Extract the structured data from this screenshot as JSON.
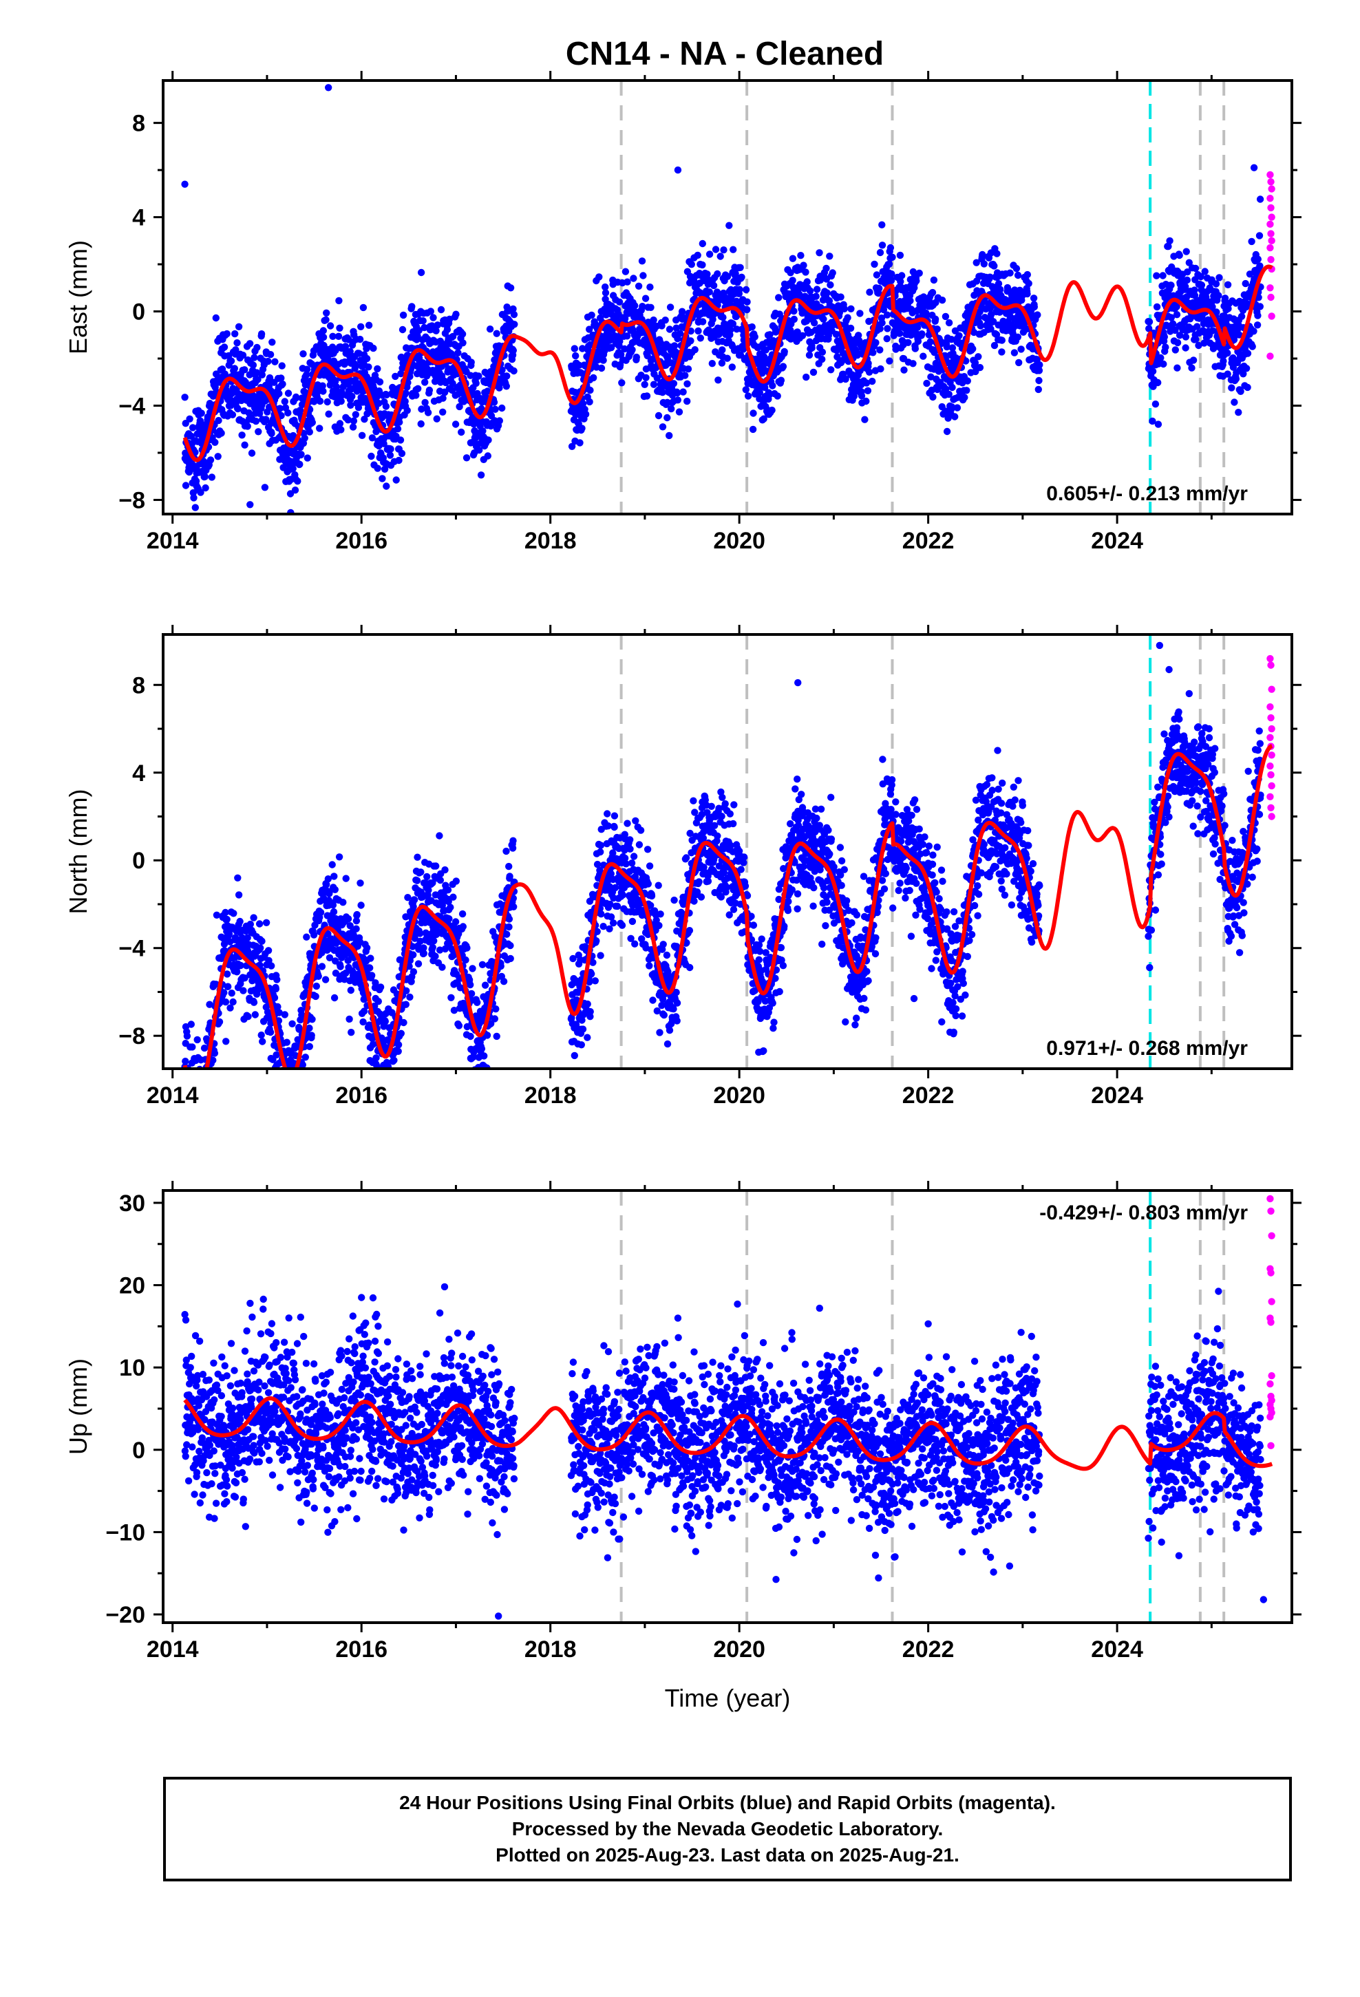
{
  "chart_data": {
    "type": "scatter",
    "title": "CN14  - NA - Cleaned",
    "xlabel": "Time (year)",
    "xlim": [
      2013.9,
      2025.85
    ],
    "xticks": [
      2014,
      2016,
      2018,
      2020,
      2022,
      2024
    ],
    "xtick_labels": [
      "2014",
      "2016",
      "2018",
      "2020",
      "2022",
      "2024"
    ],
    "data_range": {
      "start": 2014.13,
      "end": 2025.64,
      "final_end": 2025.52
    },
    "gaps": [
      [
        2017.62,
        2018.22
      ],
      [
        2023.18,
        2024.33
      ]
    ],
    "vlines_gray": [
      2018.75,
      2020.08,
      2021.62,
      2024.88,
      2025.13
    ],
    "vline_cyan": 2024.35,
    "colors": {
      "final_orbits": "#0000ff",
      "rapid_orbits": "#ff00ff",
      "model": "#ff0000",
      "equipment_change": "#bfbfbf",
      "event": "#00e5e5"
    },
    "panels": [
      {
        "name": "east",
        "ylabel": "East (mm)",
        "ylim": [
          -8.6,
          9.8
        ],
        "yticks": [
          -8,
          -4,
          0,
          4,
          8
        ],
        "ytick_labels": [
          "−8",
          "−4",
          "0",
          "4",
          "8"
        ],
        "velocity": "0.605+/- 0.213 mm/yr",
        "velocity_position": "bottom-right",
        "model": {
          "trend": 0.605,
          "intercept": -1.0,
          "sin1": -1.35,
          "cos1": -0.15,
          "sin2": 0.2,
          "cos2": 0.6,
          "offsets": [
            [
              2018.75,
              0.4
            ],
            [
              2020.08,
              -0.7
            ],
            [
              2021.62,
              -1.0
            ],
            [
              2024.35,
              -1.4
            ],
            [
              2025.13,
              0.8
            ]
          ],
          "osc": [
            [
              2017.62,
              2018.22,
              0.35
            ],
            [
              2023.18,
              2024.33,
              1.1
            ]
          ]
        },
        "noise": 1.05,
        "rapid_y": [
          5.8,
          5.5,
          5.2,
          4.8,
          4.4,
          4.0,
          3.7,
          3.3,
          3.0,
          2.7,
          2.2,
          1.8,
          1.0,
          0.6,
          -0.2,
          -1.9
        ],
        "outliers": [
          [
            2015.65,
            9.5
          ],
          [
            2014.13,
            5.4
          ],
          [
            2014.82,
            -8.2
          ],
          [
            2014.25,
            -7.2
          ],
          [
            2019.35,
            6.0
          ],
          [
            2025.45,
            6.1
          ]
        ]
      },
      {
        "name": "north",
        "ylabel": "North (mm)",
        "ylim": [
          -9.5,
          10.3
        ],
        "yticks": [
          -8,
          -4,
          0,
          4,
          8
        ],
        "ytick_labels": [
          "−8",
          "−4",
          "0",
          "4",
          "8"
        ],
        "velocity": "0.971+/- 0.268 mm/yr",
        "velocity_position": "bottom-right",
        "model": {
          "trend": 0.971,
          "intercept": -1.7,
          "sin1": -3.0,
          "cos1": -0.3,
          "sin2": 0.3,
          "cos2": 0.8,
          "offsets": [
            [
              2018.75,
              0.0
            ],
            [
              2020.08,
              -1.0
            ],
            [
              2021.62,
              -1.0
            ],
            [
              2024.35,
              1.2
            ],
            [
              2025.13,
              -0.6
            ]
          ],
          "osc": [
            [
              2017.62,
              2018.22,
              0.4
            ],
            [
              2023.18,
              2024.33,
              1.3
            ]
          ]
        },
        "noise": 1.25,
        "rapid_y": [
          9.2,
          8.9,
          7.8,
          7.0,
          6.5,
          6.0,
          5.6,
          5.2,
          4.8,
          4.3,
          3.9,
          3.4,
          2.9,
          2.4,
          2.0
        ],
        "outliers": [
          [
            2014.3,
            -9.1
          ],
          [
            2024.45,
            9.8
          ],
          [
            2024.55,
            8.7
          ],
          [
            2021.85,
            -6.3
          ],
          [
            2020.62,
            8.1
          ]
        ]
      },
      {
        "name": "up",
        "ylabel": "Up (mm)",
        "ylim": [
          -21.0,
          31.5
        ],
        "yticks": [
          -20,
          -10,
          0,
          10,
          20,
          30
        ],
        "ytick_labels": [
          "−20",
          "−10",
          "0",
          "10",
          "20",
          "30"
        ],
        "velocity": "-0.429+/- 0.803 mm/yr",
        "velocity_position": "top-right",
        "model": {
          "trend": -0.429,
          "intercept": 1.5,
          "sin1": 0.5,
          "cos1": 2.3,
          "sin2": 0.2,
          "cos2": 0.3,
          "offsets": [
            [
              2018.75,
              0.0
            ],
            [
              2020.08,
              0.0
            ],
            [
              2021.62,
              0.0
            ],
            [
              2024.35,
              2.5
            ],
            [
              2025.13,
              -1.5
            ]
          ],
          "osc": [
            [
              2017.62,
              2018.22,
              0.3
            ],
            [
              2023.18,
              2024.33,
              0.8
            ]
          ]
        },
        "noise": 4.6,
        "rapid_y": [
          30.5,
          29.0,
          26.0,
          22.0,
          21.5,
          18.0,
          16.0,
          15.5,
          9.0,
          8.0,
          6.5,
          6.0,
          5.5,
          5.0,
          4.5,
          4.0,
          0.5
        ],
        "outliers": [
          [
            2017.45,
            -20.2
          ],
          [
            2016.88,
            19.8
          ],
          [
            2016.0,
            18.5
          ],
          [
            2020.85,
            17.2
          ],
          [
            2025.55,
            -18.2
          ],
          [
            2019.35,
            16.0
          ],
          [
            2022.0,
            15.3
          ]
        ]
      }
    ]
  },
  "footer": {
    "line1": "24 Hour Positions Using Final Orbits (blue) and Rapid Orbits (magenta).",
    "line2": "Processed by the Nevada Geodetic Laboratory.",
    "line3": "Plotted on 2025-Aug-23. Last data on 2025-Aug-21."
  }
}
